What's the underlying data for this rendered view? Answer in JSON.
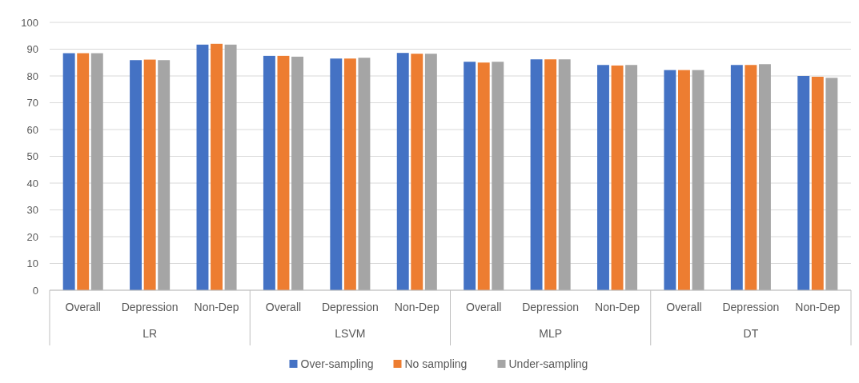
{
  "chart_data": {
    "type": "bar",
    "categories": [
      "Overall",
      "Depression",
      "Non-Dep",
      "Overall",
      "Depression",
      "Non-Dep",
      "Overall",
      "Depression",
      "Non-Dep",
      "Overall",
      "Depression",
      "Non-Dep"
    ],
    "annotations": [
      "LR",
      "LSVM",
      "MLP",
      "DT"
    ],
    "series": [
      {
        "name": "Over-sampling",
        "color": "#4472c4",
        "values": [
          88.5,
          85.9,
          91.7,
          87.5,
          86.5,
          88.6,
          85.3,
          86.2,
          84.1,
          82.2,
          84.1,
          80.0
        ]
      },
      {
        "name": "No sampling",
        "color": "#ed7d31",
        "values": [
          88.5,
          86.1,
          92.0,
          87.5,
          86.5,
          88.3,
          85.0,
          86.2,
          83.9,
          82.2,
          84.1,
          79.7
        ]
      },
      {
        "name": "Under-sampling",
        "color": "#a5a5a5",
        "values": [
          88.5,
          85.9,
          91.7,
          87.2,
          86.8,
          88.3,
          85.3,
          86.2,
          84.1,
          82.2,
          84.4,
          79.3
        ]
      }
    ],
    "ylim": [
      0,
      100
    ],
    "yticks": [
      0,
      10,
      20,
      30,
      40,
      50,
      60,
      70,
      80,
      90,
      100
    ],
    "grid": "y",
    "legend": "bottom"
  }
}
